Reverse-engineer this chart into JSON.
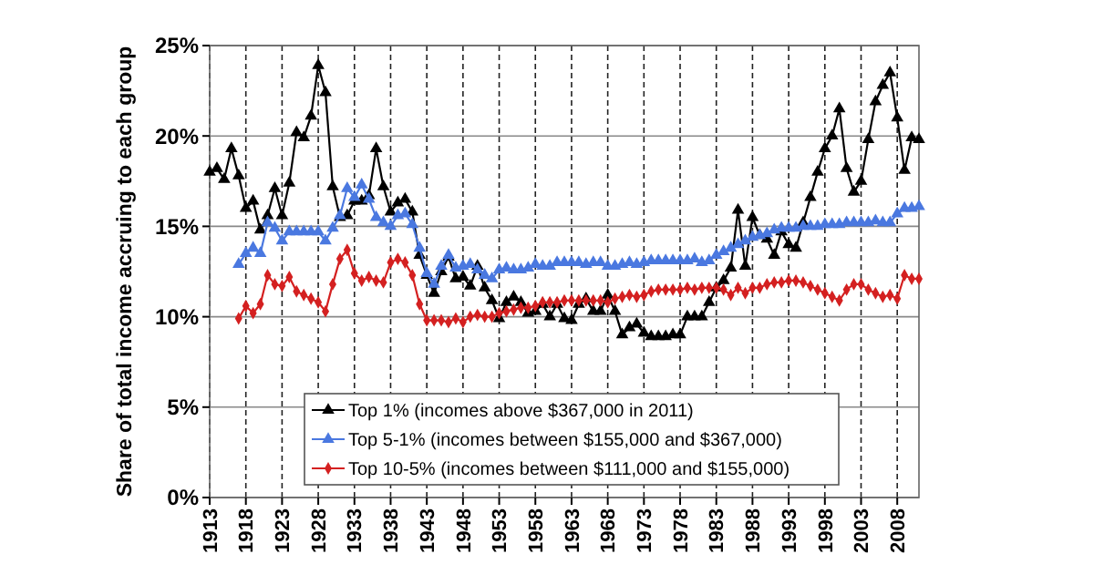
{
  "chart_data": {
    "type": "line",
    "ylabel": "Share of total income accruing to each group",
    "x": [
      1913,
      1914,
      1915,
      1916,
      1917,
      1918,
      1919,
      1920,
      1921,
      1922,
      1923,
      1924,
      1925,
      1926,
      1927,
      1928,
      1929,
      1930,
      1931,
      1932,
      1933,
      1934,
      1935,
      1936,
      1937,
      1938,
      1939,
      1940,
      1941,
      1942,
      1943,
      1944,
      1945,
      1946,
      1947,
      1948,
      1949,
      1950,
      1951,
      1952,
      1953,
      1954,
      1955,
      1956,
      1957,
      1958,
      1959,
      1960,
      1961,
      1962,
      1963,
      1964,
      1965,
      1966,
      1967,
      1968,
      1969,
      1970,
      1971,
      1972,
      1973,
      1974,
      1975,
      1976,
      1977,
      1978,
      1979,
      1980,
      1981,
      1982,
      1983,
      1984,
      1985,
      1986,
      1987,
      1988,
      1989,
      1990,
      1991,
      1992,
      1993,
      1994,
      1995,
      1996,
      1997,
      1998,
      1999,
      2000,
      2001,
      2002,
      2003,
      2004,
      2005,
      2006,
      2007,
      2008,
      2009,
      2010,
      2011
    ],
    "series": [
      {
        "name": "Top 1% (incomes above $367,000 in 2011)",
        "color": "#000000",
        "marker": "triangle",
        "values": [
          18.0,
          18.2,
          17.6,
          19.3,
          17.8,
          16.0,
          16.4,
          14.8,
          15.6,
          17.1,
          15.6,
          17.4,
          20.2,
          19.9,
          21.1,
          23.9,
          22.4,
          17.2,
          15.5,
          15.6,
          16.4,
          16.4,
          16.7,
          19.3,
          17.2,
          15.8,
          16.3,
          16.5,
          15.8,
          13.4,
          12.3,
          11.3,
          12.5,
          13.3,
          12.1,
          12.2,
          11.7,
          12.8,
          11.6,
          10.9,
          9.9,
          10.8,
          11.1,
          10.8,
          10.2,
          10.3,
          10.7,
          10.0,
          10.7,
          9.9,
          9.8,
          10.7,
          11.0,
          10.3,
          10.3,
          11.2,
          10.3,
          9.0,
          9.4,
          9.6,
          9.1,
          8.9,
          8.9,
          8.9,
          9.0,
          9.0,
          10.0,
          10.0,
          10.0,
          10.8,
          11.6,
          12.0,
          12.7,
          15.9,
          12.8,
          15.5,
          14.5,
          14.3,
          13.4,
          14.7,
          14.0,
          13.8,
          15.2,
          16.6,
          18.0,
          19.3,
          20.0,
          21.5,
          18.2,
          16.9,
          17.5,
          19.8,
          21.9,
          22.8,
          23.5,
          21.0,
          18.1,
          19.9,
          19.8
        ]
      },
      {
        "name": "Top 5-1% (incomes between $155,000 and $367,000)",
        "color": "#4a78e0",
        "marker": "triangle",
        "values": [
          null,
          null,
          null,
          null,
          12.9,
          13.5,
          13.8,
          13.5,
          15.2,
          14.9,
          14.2,
          14.7,
          14.7,
          14.7,
          14.7,
          14.7,
          14.2,
          14.9,
          15.6,
          17.1,
          16.6,
          17.3,
          16.5,
          15.5,
          15.2,
          15.0,
          15.6,
          15.7,
          15.1,
          13.8,
          12.4,
          11.8,
          12.8,
          13.4,
          12.7,
          12.8,
          12.9,
          12.6,
          12.3,
          12.1,
          12.6,
          12.7,
          12.6,
          12.6,
          12.7,
          12.9,
          12.8,
          12.8,
          13.0,
          13.0,
          13.0,
          13.0,
          12.9,
          13.0,
          13.0,
          12.8,
          12.8,
          12.9,
          13.0,
          12.9,
          13.0,
          13.1,
          13.1,
          13.1,
          13.1,
          13.1,
          13.1,
          13.2,
          13.0,
          13.1,
          13.4,
          13.6,
          13.8,
          14.0,
          14.2,
          14.4,
          14.5,
          14.6,
          14.8,
          14.9,
          14.9,
          14.9,
          15.0,
          15.0,
          15.0,
          15.1,
          15.1,
          15.1,
          15.2,
          15.2,
          15.2,
          15.2,
          15.3,
          15.2,
          15.2,
          15.7,
          16.0,
          16.0,
          16.1
        ]
      },
      {
        "name": "Top 10-5% (incomes between $111,000 and $155,000)",
        "color": "#d42020",
        "marker": "diamond",
        "values": [
          null,
          null,
          null,
          null,
          9.9,
          10.6,
          10.2,
          10.7,
          12.3,
          11.8,
          11.7,
          12.2,
          11.4,
          11.2,
          11.0,
          10.8,
          10.3,
          11.8,
          13.2,
          13.7,
          12.4,
          12.0,
          12.2,
          12.0,
          11.9,
          13.0,
          13.2,
          13.0,
          12.3,
          10.7,
          9.8,
          9.8,
          9.8,
          9.7,
          9.9,
          9.7,
          10.0,
          10.1,
          10.0,
          10.0,
          10.2,
          10.3,
          10.4,
          10.5,
          10.5,
          10.6,
          10.8,
          10.8,
          10.8,
          10.9,
          10.9,
          10.9,
          10.9,
          10.9,
          10.9,
          10.8,
          11.0,
          11.1,
          11.2,
          11.1,
          11.2,
          11.4,
          11.5,
          11.5,
          11.5,
          11.5,
          11.6,
          11.5,
          11.6,
          11.6,
          11.6,
          11.5,
          11.2,
          11.6,
          11.3,
          11.6,
          11.6,
          11.8,
          11.9,
          11.9,
          12.0,
          12.0,
          11.9,
          11.7,
          11.5,
          11.3,
          11.1,
          10.9,
          11.5,
          11.8,
          11.8,
          11.5,
          11.3,
          11.1,
          11.2,
          11.0,
          12.3,
          12.1,
          12.1
        ]
      }
    ],
    "xlim": [
      1913,
      2011
    ],
    "xticks": [
      1913,
      1918,
      1923,
      1928,
      1933,
      1938,
      1943,
      1948,
      1953,
      1958,
      1963,
      1968,
      1973,
      1978,
      1983,
      1988,
      1993,
      1998,
      2003,
      2008
    ],
    "ylim": [
      0,
      25
    ],
    "yticks": [
      {
        "value": 0,
        "label": "0%"
      },
      {
        "value": 5,
        "label": "5%"
      },
      {
        "value": 10,
        "label": "10%"
      },
      {
        "value": 15,
        "label": "15%"
      },
      {
        "value": 20,
        "label": "20%"
      },
      {
        "value": 25,
        "label": "25%"
      }
    ],
    "grid": true,
    "legend": "bottom",
    "line_style": "solid"
  }
}
